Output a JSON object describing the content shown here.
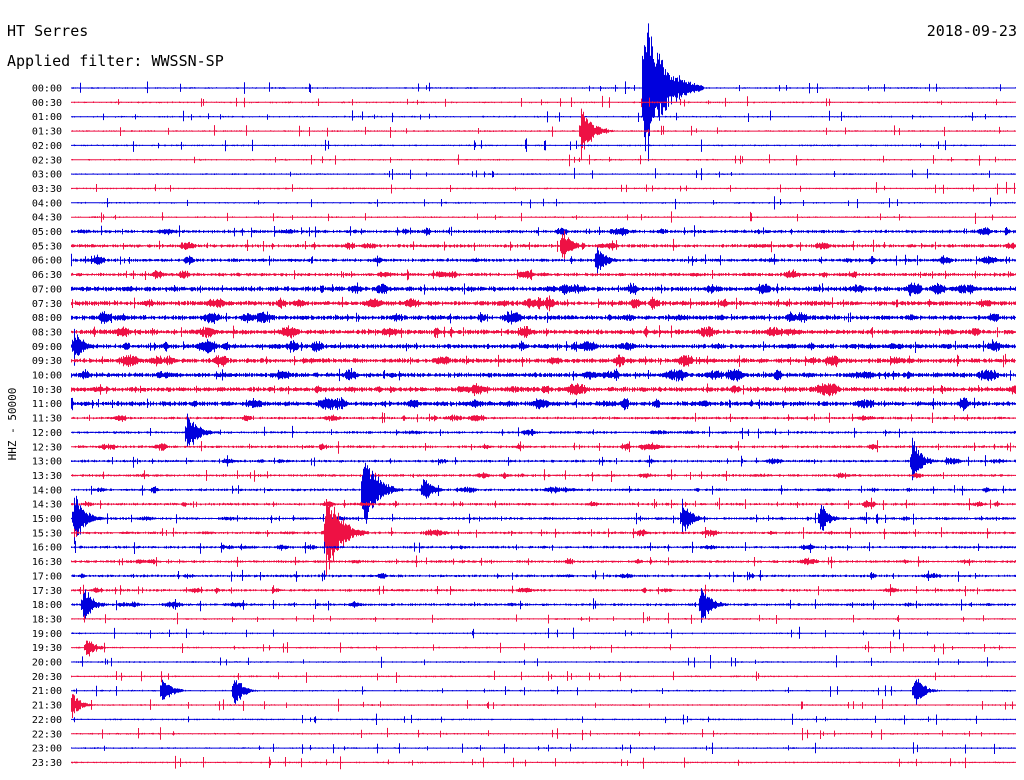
{
  "header": {
    "station": "HT Serres",
    "date": "2018-09-23",
    "filter": "Applied filter: WWSSN-SP"
  },
  "chart_data": {
    "type": "line",
    "ylabel": "HHZ - 50000",
    "y_tick_labels": [
      "00:00",
      "00:30",
      "01:00",
      "01:30",
      "02:00",
      "02:30",
      "03:00",
      "03:30",
      "04:00",
      "04:30",
      "05:00",
      "05:30",
      "06:00",
      "06:30",
      "07:00",
      "07:30",
      "08:00",
      "08:30",
      "09:00",
      "09:30",
      "10:00",
      "10:30",
      "11:00",
      "11:30",
      "12:00",
      "12:30",
      "13:00",
      "13:30",
      "14:00",
      "14:30",
      "15:00",
      "15:30",
      "16:00",
      "16:30",
      "17:00",
      "17:30",
      "18:00",
      "18:30",
      "19:00",
      "19:30",
      "20:00",
      "20:30",
      "21:00",
      "21:30",
      "22:00",
      "22:30",
      "23:00",
      "23:30"
    ],
    "trace_colors": [
      "#0000dd",
      "#ee1144"
    ],
    "trace_minutes": 30,
    "events": [
      {
        "row": 0,
        "minute": 18.2,
        "amplitude": 6.0
      },
      {
        "row": 3,
        "minute": 16.2,
        "amplitude": 2.2
      },
      {
        "row": 11,
        "minute": 15.6,
        "amplitude": 1.3
      },
      {
        "row": 12,
        "minute": 16.7,
        "amplitude": 1.3
      },
      {
        "row": 18,
        "minute": 0.1,
        "amplitude": 1.4
      },
      {
        "row": 24,
        "minute": 3.7,
        "amplitude": 1.8
      },
      {
        "row": 26,
        "minute": 26.7,
        "amplitude": 1.7
      },
      {
        "row": 28,
        "minute": 9.3,
        "amplitude": 3.2
      },
      {
        "row": 28,
        "minute": 11.2,
        "amplitude": 1.2
      },
      {
        "row": 30,
        "minute": 0.1,
        "amplitude": 2.0
      },
      {
        "row": 30,
        "minute": 19.4,
        "amplitude": 1.5
      },
      {
        "row": 30,
        "minute": 23.8,
        "amplitude": 1.2
      },
      {
        "row": 31,
        "minute": 8.1,
        "amplitude": 3.6
      },
      {
        "row": 36,
        "minute": 0.4,
        "amplitude": 1.5
      },
      {
        "row": 36,
        "minute": 20.0,
        "amplitude": 1.7
      },
      {
        "row": 39,
        "minute": 0.5,
        "amplitude": 1.0
      },
      {
        "row": 42,
        "minute": 2.9,
        "amplitude": 1.3
      },
      {
        "row": 42,
        "minute": 5.2,
        "amplitude": 1.3
      },
      {
        "row": 42,
        "minute": 26.8,
        "amplitude": 1.3
      },
      {
        "row": 43,
        "minute": 0.0,
        "amplitude": 1.1
      }
    ]
  }
}
